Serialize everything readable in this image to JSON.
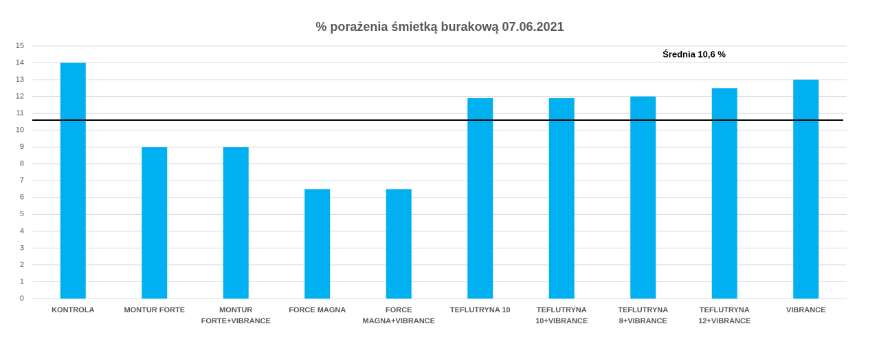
{
  "chart_data": {
    "type": "bar",
    "title": "% porażenia śmietką burakową 07.06.2021",
    "categories": [
      "KONTROLA",
      "MONTUR FORTE",
      "MONTUR FORTE+VIBRANCE",
      "FORCE MAGNA",
      "FORCE MAGNA+VIBRANCE",
      "TEFLUTRYNA 10",
      "TEFLUTRYNA 10+VIBRANCE",
      "TEFLUTRYNA 8+VIBRANCE",
      "TEFLUTRYNA 12+VIBRANCE",
      "VIBRANCE"
    ],
    "values": [
      14,
      9,
      9,
      6.5,
      6.5,
      11.9,
      11.9,
      12,
      12.5,
      13
    ],
    "color": "#00b0f0",
    "ylim": [
      0,
      15
    ],
    "yticks": [
      0,
      1,
      2,
      3,
      4,
      5,
      6,
      7,
      8,
      9,
      10,
      11,
      12,
      13,
      14,
      15
    ],
    "grid": true,
    "reference_line": {
      "value": 10.6,
      "label": "Średnia 10,6 %",
      "color": "#000000"
    }
  }
}
